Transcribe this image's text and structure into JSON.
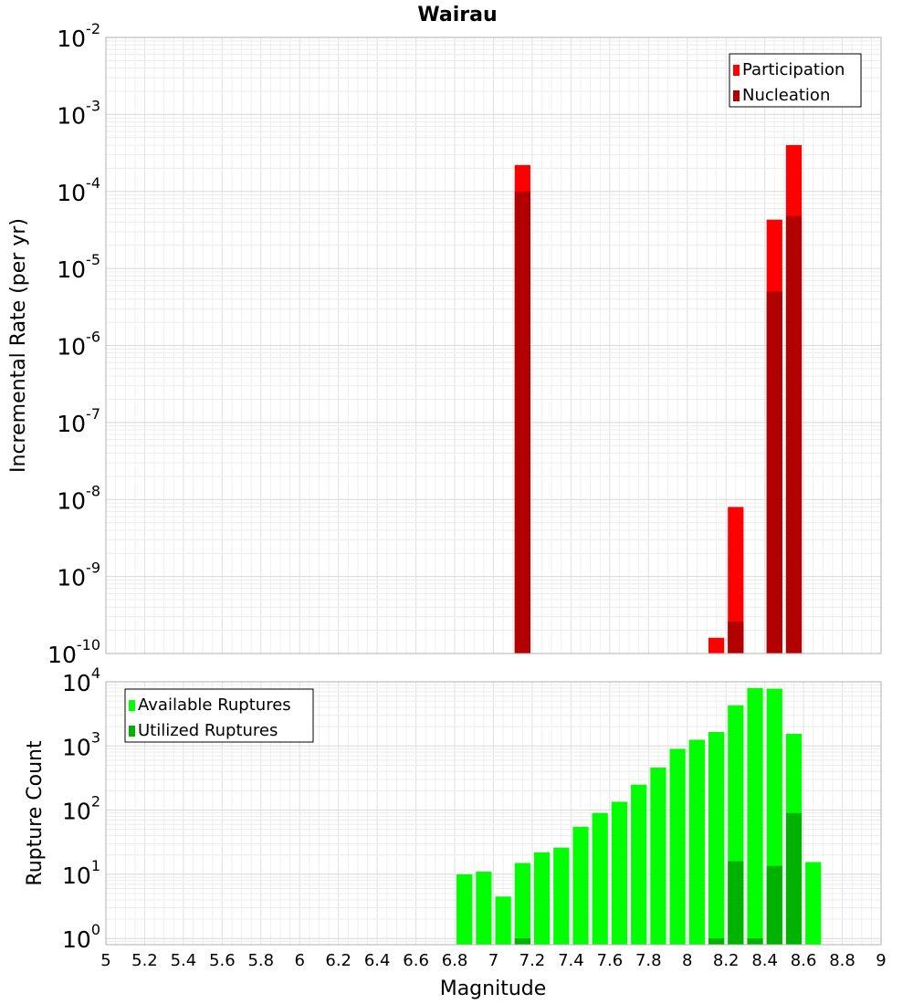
{
  "chart_data": {
    "type": "bar",
    "title": "Wairau",
    "xlabel": "Magnitude",
    "x_ticks": [
      "5",
      "5.2",
      "5.4",
      "5.6",
      "5.8",
      "6",
      "6.2",
      "6.4",
      "6.6",
      "6.8",
      "7",
      "7.2",
      "7.4",
      "7.6",
      "7.8",
      "8",
      "8.2",
      "8.4",
      "8.6",
      "8.8",
      "9"
    ],
    "xlim": [
      5,
      9
    ],
    "panels": [
      {
        "name": "rate",
        "ylabel": "Incremental Rate (per yr)",
        "yscale": "log",
        "ylim": [
          1e-10,
          0.01
        ],
        "y_ticks": [
          {
            "value": 1e-10,
            "base": "10",
            "exp": "-10"
          },
          {
            "value": 1e-09,
            "base": "10",
            "exp": "-9"
          },
          {
            "value": 1e-08,
            "base": "10",
            "exp": "-8"
          },
          {
            "value": 1e-07,
            "base": "10",
            "exp": "-7"
          },
          {
            "value": 1e-06,
            "base": "10",
            "exp": "-6"
          },
          {
            "value": 1e-05,
            "base": "10",
            "exp": "-5"
          },
          {
            "value": 0.0001,
            "base": "10",
            "exp": "-4"
          },
          {
            "value": 0.001,
            "base": "10",
            "exp": "-3"
          },
          {
            "value": 0.01,
            "base": "10",
            "exp": "-2"
          }
        ],
        "legend_position": "top-right",
        "series": [
          {
            "name": "Participation",
            "color": "#ff0000",
            "points": [
              {
                "x": 7.15,
                "y": 0.00022
              },
              {
                "x": 8.15,
                "y": 1.6e-10
              },
              {
                "x": 8.25,
                "y": 8e-09
              },
              {
                "x": 8.45,
                "y": 4.3e-05
              },
              {
                "x": 8.55,
                "y": 0.0004
              }
            ]
          },
          {
            "name": "Nucleation",
            "color": "#b20000",
            "points": [
              {
                "x": 7.15,
                "y": 0.0001
              },
              {
                "x": 8.25,
                "y": 2.6e-10
              },
              {
                "x": 8.45,
                "y": 5e-06
              },
              {
                "x": 8.55,
                "y": 4.8e-05
              }
            ]
          }
        ]
      },
      {
        "name": "count",
        "ylabel": "Rupture Count",
        "yscale": "log",
        "ylim": [
          0.8,
          10000
        ],
        "y_ticks": [
          {
            "value": 1,
            "base": "10",
            "exp": "0"
          },
          {
            "value": 10,
            "base": "10",
            "exp": "1"
          },
          {
            "value": 100,
            "base": "10",
            "exp": "2"
          },
          {
            "value": 1000,
            "base": "10",
            "exp": "3"
          },
          {
            "value": 10000,
            "base": "10",
            "exp": "4"
          }
        ],
        "legend_position": "top-left",
        "series": [
          {
            "name": "Available Ruptures",
            "color": "#00ff00",
            "points": [
              {
                "x": 6.85,
                "y": 10
              },
              {
                "x": 6.95,
                "y": 11
              },
              {
                "x": 7.05,
                "y": 4.5
              },
              {
                "x": 7.15,
                "y": 15
              },
              {
                "x": 7.25,
                "y": 22
              },
              {
                "x": 7.35,
                "y": 26
              },
              {
                "x": 7.45,
                "y": 55
              },
              {
                "x": 7.55,
                "y": 90
              },
              {
                "x": 7.65,
                "y": 135
              },
              {
                "x": 7.75,
                "y": 250
              },
              {
                "x": 7.85,
                "y": 460
              },
              {
                "x": 7.95,
                "y": 900
              },
              {
                "x": 8.05,
                "y": 1250
              },
              {
                "x": 8.15,
                "y": 1650
              },
              {
                "x": 8.25,
                "y": 4300
              },
              {
                "x": 8.35,
                "y": 8000
              },
              {
                "x": 8.45,
                "y": 7800
              },
              {
                "x": 8.55,
                "y": 1550
              },
              {
                "x": 8.65,
                "y": 15.5
              }
            ]
          },
          {
            "name": "Utilized Ruptures",
            "color": "#00b200",
            "points": [
              {
                "x": 7.15,
                "y": 1
              },
              {
                "x": 8.15,
                "y": 1
              },
              {
                "x": 8.25,
                "y": 16
              },
              {
                "x": 8.35,
                "y": 1
              },
              {
                "x": 8.45,
                "y": 13.5
              },
              {
                "x": 8.55,
                "y": 90
              }
            ]
          }
        ]
      }
    ]
  }
}
